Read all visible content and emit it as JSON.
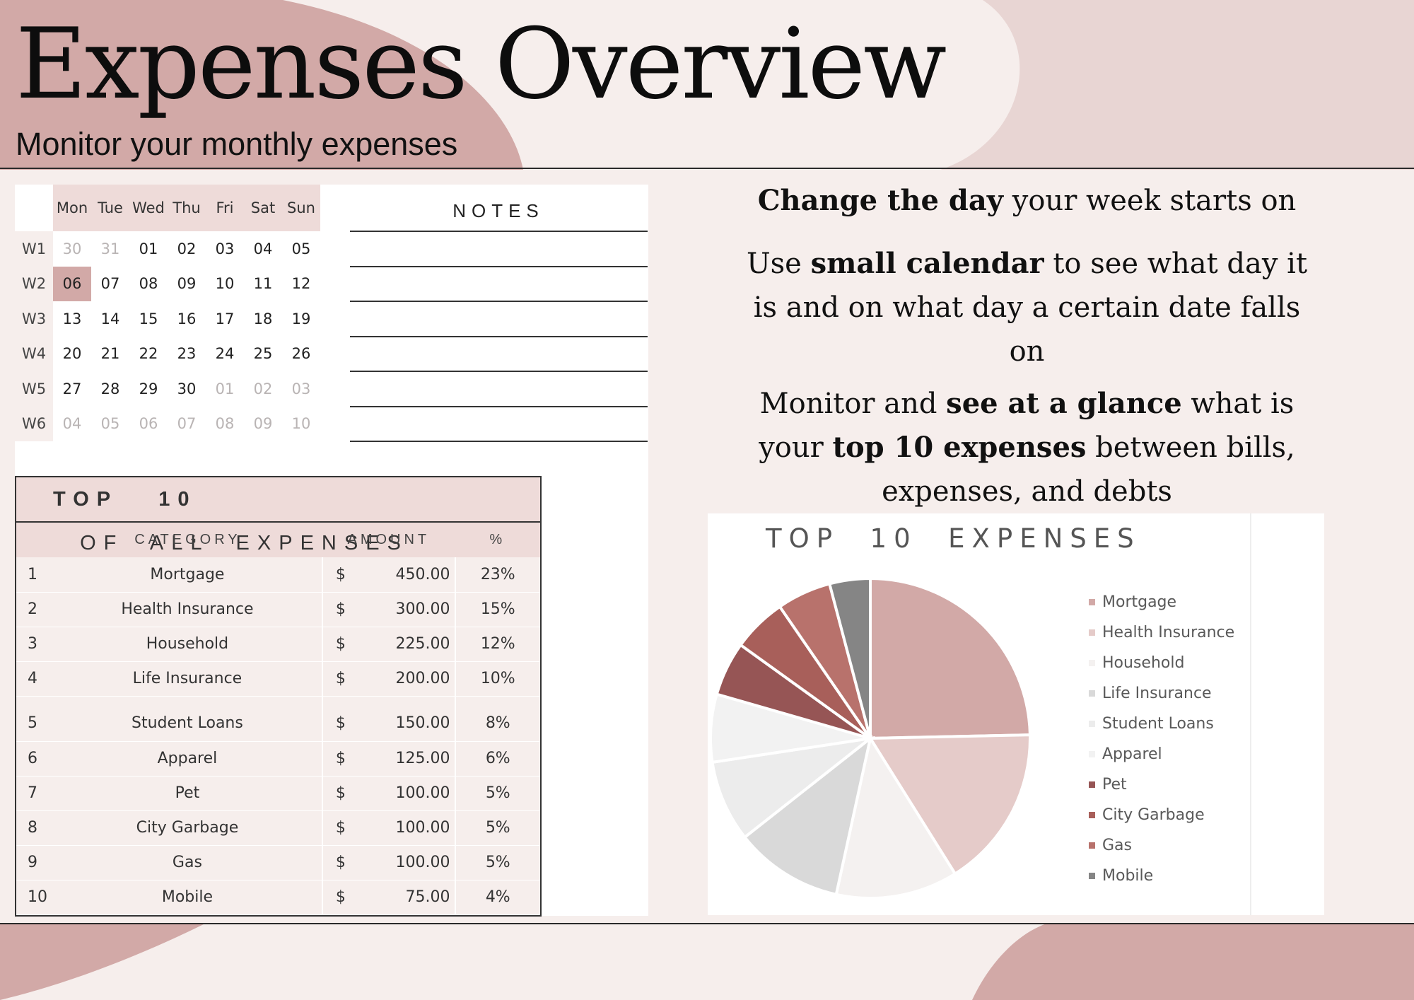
{
  "header": {
    "title": "Expenses Overview",
    "subtitle": "Monitor your monthly expenses"
  },
  "colors": {
    "accent_dark": "#d2a9a7",
    "accent_light": "#eedbd9",
    "background": "#f6eeec"
  },
  "calendar": {
    "days": [
      "Mon",
      "Tue",
      "Wed",
      "Thu",
      "Fri",
      "Sat",
      "Sun"
    ],
    "weeks": [
      {
        "label": "W1",
        "dates": [
          "30",
          "31",
          "01",
          "02",
          "03",
          "04",
          "05"
        ],
        "in_month": [
          false,
          false,
          true,
          true,
          true,
          true,
          true
        ]
      },
      {
        "label": "W2",
        "dates": [
          "06",
          "07",
          "08",
          "09",
          "10",
          "11",
          "12"
        ],
        "in_month": [
          true,
          true,
          true,
          true,
          true,
          true,
          true
        ]
      },
      {
        "label": "W3",
        "dates": [
          "13",
          "14",
          "15",
          "16",
          "17",
          "18",
          "19"
        ],
        "in_month": [
          true,
          true,
          true,
          true,
          true,
          true,
          true
        ]
      },
      {
        "label": "W4",
        "dates": [
          "20",
          "21",
          "22",
          "23",
          "24",
          "25",
          "26"
        ],
        "in_month": [
          true,
          true,
          true,
          true,
          true,
          true,
          true
        ]
      },
      {
        "label": "W5",
        "dates": [
          "27",
          "28",
          "29",
          "30",
          "01",
          "02",
          "03"
        ],
        "in_month": [
          true,
          true,
          true,
          true,
          false,
          false,
          false
        ]
      },
      {
        "label": "W6",
        "dates": [
          "04",
          "05",
          "06",
          "07",
          "08",
          "09",
          "10"
        ],
        "in_month": [
          false,
          false,
          false,
          false,
          false,
          false,
          false
        ]
      }
    ],
    "today": "06"
  },
  "notes": {
    "title": "NOTES"
  },
  "top10": {
    "title_a": "TOP",
    "title_b": "10",
    "title_c": "OF  ALL  EXPENSES",
    "headers": {
      "category": "CATEGORY",
      "amount": "AMOUNT",
      "percent": "%"
    },
    "rows": [
      {
        "rank": "1",
        "category": "Mortgage",
        "currency": "$",
        "amount": "450.00",
        "percent": "23%"
      },
      {
        "rank": "2",
        "category": "Health Insurance",
        "currency": "$",
        "amount": "300.00",
        "percent": "15%"
      },
      {
        "rank": "3",
        "category": "Household",
        "currency": "$",
        "amount": "225.00",
        "percent": "12%"
      },
      {
        "rank": "4",
        "category": "Life Insurance",
        "currency": "$",
        "amount": "200.00",
        "percent": "10%"
      },
      {
        "rank": "5",
        "category": "Student Loans",
        "currency": "$",
        "amount": "150.00",
        "percent": "8%"
      },
      {
        "rank": "6",
        "category": "Apparel",
        "currency": "$",
        "amount": "125.00",
        "percent": "6%"
      },
      {
        "rank": "7",
        "category": "Pet",
        "currency": "$",
        "amount": "100.00",
        "percent": "5%"
      },
      {
        "rank": "8",
        "category": "City Garbage",
        "currency": "$",
        "amount": "100.00",
        "percent": "5%"
      },
      {
        "rank": "9",
        "category": "Gas",
        "currency": "$",
        "amount": "100.00",
        "percent": "5%"
      },
      {
        "rank": "10",
        "category": "Mobile",
        "currency": "$",
        "amount": "75.00",
        "percent": "4%"
      }
    ]
  },
  "info": {
    "p1": {
      "bold1": "Change the day",
      "rest1": " your week starts on"
    },
    "p2": {
      "pre": "Use ",
      "bold1": "small calendar",
      "rest1": " to see what day it is and on what day a certain date falls on"
    },
    "p3": {
      "pre": "Monitor and ",
      "bold1": "see at a glance",
      "mid": " what is your ",
      "bold2": "top 10 expenses",
      "rest1": " between bills, expenses, and debts"
    }
  },
  "chart_data": {
    "type": "pie",
    "title": "TOP  10  EXPENSES",
    "legend_position": "right",
    "categories": [
      "Mortgage",
      "Health Insurance",
      "Household",
      "Life Insurance",
      "Student Loans",
      "Apparel",
      "Pet",
      "City Garbage",
      "Gas",
      "Mobile"
    ],
    "values": [
      450,
      300,
      225,
      200,
      150,
      125,
      100,
      100,
      100,
      75
    ],
    "colors": [
      "#d2a9a7",
      "#e5cbc9",
      "#f4f1f0",
      "#d9d9d9",
      "#ececec",
      "#f2f2f2",
      "#965555",
      "#a85f5a",
      "#b8726c",
      "#858585"
    ]
  }
}
